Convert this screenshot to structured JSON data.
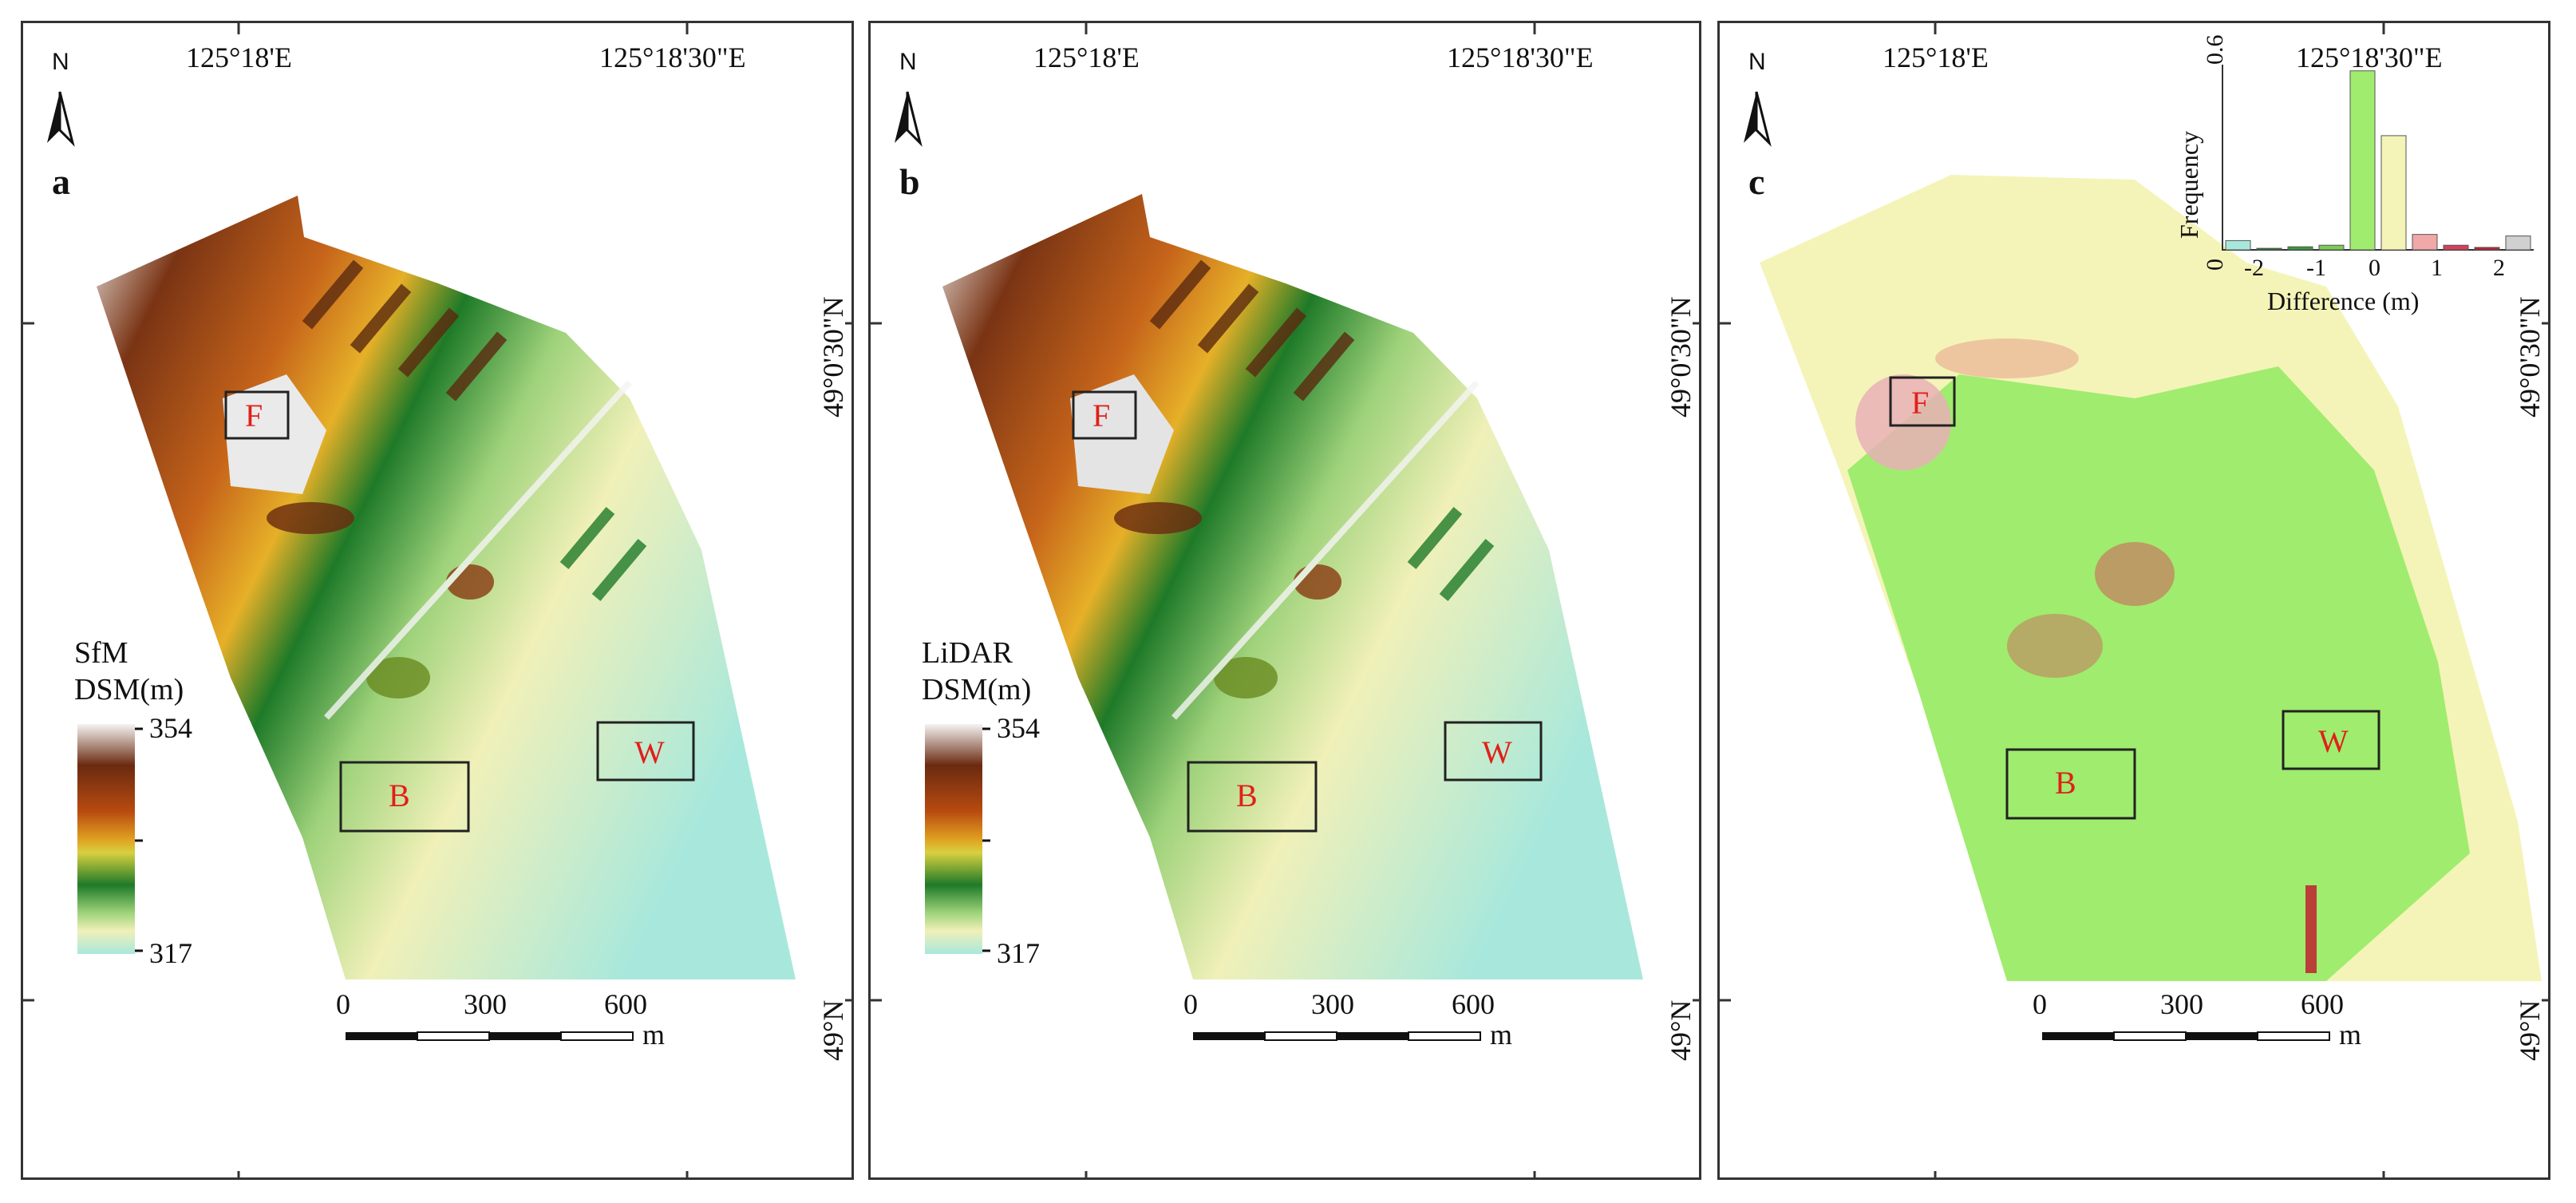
{
  "panels": [
    {
      "id": "a",
      "label": "a",
      "legend": {
        "title_line1": "SfM",
        "title_line2": "DSM(m)",
        "max": "354",
        "min": "317"
      }
    },
    {
      "id": "b",
      "label": "b",
      "legend": {
        "title_line1": "LiDAR",
        "title_line2": "DSM(m)",
        "max": "354",
        "min": "317"
      }
    },
    {
      "id": "c",
      "label": "c"
    }
  ],
  "north_letter": "N",
  "coords": {
    "lon_west": "125°18'E",
    "lon_east": "125°18'30\"E",
    "lat_north": "49°0'30\"N",
    "lat_south": "49°N"
  },
  "scalebar": {
    "ticks": [
      "0",
      "300",
      "600"
    ],
    "unit": "m"
  },
  "regions": {
    "F": "F",
    "B": "B",
    "W": "W"
  },
  "colors": {
    "dsm_ramp": [
      "#f4f4f4",
      "#6a2a10",
      "#b84a10",
      "#e0a020",
      "#d8d040",
      "#1e7a28",
      "#9ed27a",
      "#f0f0b8",
      "#a8e8dc"
    ],
    "diff_positive": "#f4f4b8",
    "diff_zero": "#a0ec6e",
    "diff_high": "#d8405a",
    "box_label": "#e0201a"
  },
  "chart_data": {
    "type": "bar",
    "xlabel": "Difference (m)",
    "ylabel": "Frequency",
    "ylim": [
      0,
      0.6
    ],
    "y_ticks": [
      "0",
      "0.6"
    ],
    "x_ticks": [
      "-2",
      "-1",
      "0",
      "1",
      "2"
    ],
    "bins": [
      "-2.25",
      "-1.75",
      "-1.25",
      "-0.75",
      "-0.25",
      "0.25",
      "0.75",
      "1.25",
      "1.75",
      "2.25"
    ],
    "values": [
      0.03,
      0.005,
      0.01,
      0.015,
      0.58,
      0.37,
      0.05,
      0.015,
      0.008,
      0.045
    ],
    "bar_colors": [
      "#a8e8dc",
      "#1e7a28",
      "#3a9a3a",
      "#7ccc54",
      "#a0ec6e",
      "#f4f4b8",
      "#f0a8a8",
      "#d8405a",
      "#c02030",
      "#d0d0d0"
    ]
  }
}
